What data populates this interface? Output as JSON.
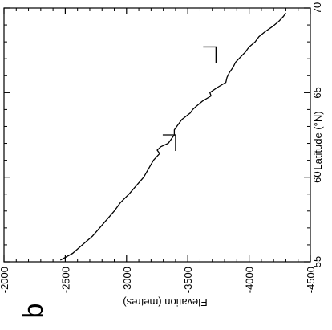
{
  "chart_data": {
    "type": "line",
    "panel_label": "b",
    "orientation": "rotated-90-clockwise",
    "xlabel": "Latitude (°N)",
    "ylabel": "Elevation (metres)",
    "xlim": [
      55,
      70
    ],
    "ylim": [
      -4500,
      -2000
    ],
    "x_ticks": [
      55,
      60,
      65,
      70
    ],
    "x_tick_labels": [
      "55",
      "60",
      "65",
      "70"
    ],
    "y_ticks": [
      -2000,
      -2500,
      -3000,
      -3500,
      -4000,
      -4500
    ],
    "y_tick_labels": [
      "-2000",
      "-2500",
      "-3000",
      "-3500",
      "-4000",
      "-4500"
    ],
    "grid": false,
    "series": [
      {
        "x": [
          55.1,
          55.5,
          56.0,
          56.5,
          57.0,
          57.5,
          58.0,
          58.5,
          59.0,
          59.5,
          60.0,
          60.5,
          61.0,
          61.4,
          61.6,
          61.8,
          62.0,
          62.3,
          62.5,
          62.8,
          63.0,
          63.4,
          63.8,
          64.0,
          64.2,
          64.5,
          64.8,
          65.0,
          65.3,
          65.6,
          65.9,
          66.2,
          66.5,
          66.8,
          67.1,
          67.4,
          67.7,
          68.0,
          68.3,
          68.6,
          68.9,
          69.2,
          69.5,
          69.7
        ],
        "y": [
          -2460,
          -2560,
          -2640,
          -2720,
          -2780,
          -2840,
          -2900,
          -2950,
          -3020,
          -3080,
          -3140,
          -3180,
          -3220,
          -3270,
          -3250,
          -3280,
          -3340,
          -3370,
          -3390,
          -3390,
          -3410,
          -3450,
          -3520,
          -3540,
          -3570,
          -3620,
          -3690,
          -3680,
          -3740,
          -3810,
          -3820,
          -3840,
          -3870,
          -3890,
          -3930,
          -3970,
          -4000,
          -4050,
          -4080,
          -4130,
          -4190,
          -4240,
          -4280,
          -4300
        ]
      }
    ],
    "annotations": [
      {
        "type": "bracket",
        "lat": 62.5,
        "elev": -3400
      },
      {
        "type": "bracket",
        "lat": 67.7,
        "elev": -3730
      }
    ]
  }
}
